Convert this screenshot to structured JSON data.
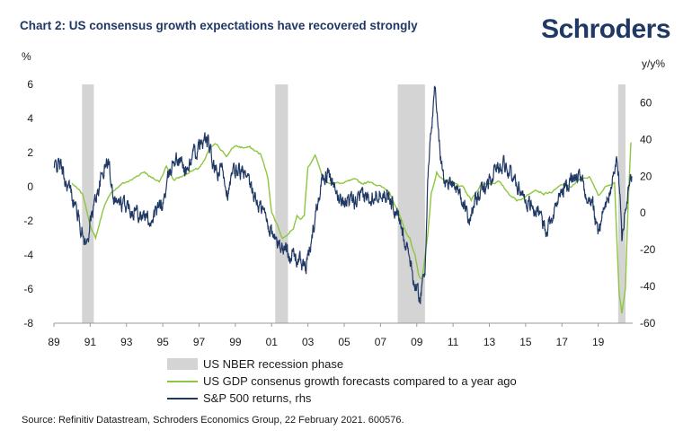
{
  "header": {
    "title": "Chart 2: US consensus growth expectations have recovered strongly",
    "logo": "Schroders"
  },
  "source": "Source: Refinitiv Datastream, Schroders Economics Group, 22 February 2021. 600576.",
  "colors": {
    "recession": "#d4d4d4",
    "gdp": "#8dc63f",
    "sp500": "#1f3864",
    "axis": "#9a9a9a",
    "text": "#1a1a1a"
  },
  "chart_data": {
    "type": "line",
    "title": "Chart 2: US consensus growth expectations have recovered strongly",
    "y_left_unit": "%",
    "y_right_unit": "y/y%",
    "ylim_left": [
      -8,
      6
    ],
    "ylim_right": [
      -60,
      70
    ],
    "xlim": [
      1989,
      2020.9
    ],
    "x_ticks": [
      "89",
      "91",
      "93",
      "95",
      "97",
      "99",
      "01",
      "03",
      "05",
      "07",
      "09",
      "11",
      "13",
      "15",
      "17",
      "19"
    ],
    "y_left_ticks": [
      -8,
      -6,
      -4,
      -2,
      0,
      2,
      4,
      6
    ],
    "y_right_ticks": [
      -60,
      -40,
      -20,
      0,
      20,
      40,
      60
    ],
    "grid": false,
    "legend_position": "bottom",
    "recessions": [
      [
        1990.55,
        1991.2
      ],
      [
        2001.2,
        2001.9
      ],
      [
        2007.95,
        2009.45
      ],
      [
        2020.1,
        2020.95
      ]
    ],
    "series": [
      {
        "name": "US NBER recession phase",
        "kind": "shaded"
      },
      {
        "name": "US GDP consenus growth forecasts compared to a year ago",
        "axis": "left",
        "color": "#8dc63f",
        "x": [
          1990.0,
          1990.6,
          1991.1,
          1991.3,
          1991.8,
          1992.3,
          1992.8,
          1993.3,
          1993.8,
          1994.0,
          1994.4,
          1994.8,
          1995.2,
          1995.6,
          1996.0,
          1996.5,
          1996.9,
          1997.3,
          1997.6,
          1998.0,
          1998.5,
          1999.0,
          1999.4,
          1999.8,
          2000.1,
          2000.4,
          2000.8,
          2001.0,
          2001.3,
          2001.6,
          2001.9,
          2002.2,
          2002.4,
          2002.6,
          2002.8,
          2003.0,
          2003.2,
          2003.4,
          2003.6,
          2003.8,
          2004.0,
          2004.5,
          2005.0,
          2005.5,
          2006.0,
          2006.5,
          2007.0,
          2007.5,
          2008.0,
          2008.3,
          2008.6,
          2008.9,
          2009.1,
          2009.3,
          2009.6,
          2009.8,
          2010.1,
          2010.5,
          2011.0,
          2011.5,
          2012.0,
          2012.5,
          2013.0,
          2013.5,
          2014.0,
          2014.5,
          2015.0,
          2015.5,
          2016.0,
          2016.5,
          2017.0,
          2017.5,
          2018.0,
          2018.5,
          2019.0,
          2019.5,
          2019.9,
          2020.15,
          2020.3,
          2020.5,
          2020.65,
          2020.8
        ],
        "y": [
          0.2,
          -0.5,
          -2.6,
          -3.0,
          -1.0,
          -0.2,
          0.2,
          0.4,
          0.8,
          0.9,
          0.5,
          0.3,
          1.2,
          0.4,
          0.6,
          0.9,
          1.0,
          1.5,
          2.3,
          2.5,
          1.8,
          2.4,
          2.3,
          2.3,
          2.1,
          1.9,
          0.5,
          -1.5,
          -2.2,
          -3.0,
          -2.8,
          -2.4,
          -1.7,
          -1.8,
          -1.6,
          1.2,
          1.5,
          1.8,
          1.3,
          0.5,
          0.3,
          0.2,
          0.2,
          0.4,
          0.2,
          0.3,
          0.0,
          -0.3,
          -1.5,
          -2.5,
          -3.0,
          -4.0,
          -5.2,
          -5.4,
          -2.8,
          -0.4,
          0.8,
          0.4,
          0.2,
          0.0,
          -0.8,
          0.1,
          0.2,
          0.3,
          -0.3,
          -0.8,
          -0.6,
          -0.1,
          -0.4,
          -0.3,
          0.1,
          0.0,
          0.4,
          0.6,
          -0.5,
          0.1,
          0.3,
          -6.2,
          -7.5,
          -6.0,
          -1.0,
          2.6
        ]
      },
      {
        "name": "S&P 500 returns, rhs",
        "axis": "right",
        "color": "#1f3864",
        "x": [
          1989.0,
          1989.3,
          1989.6,
          1990.0,
          1990.3,
          1990.6,
          1990.8,
          1991.0,
          1991.3,
          1991.5,
          1991.8,
          1992.0,
          1992.3,
          1992.6,
          1993.0,
          1993.5,
          1994.0,
          1994.3,
          1994.6,
          1995.0,
          1995.3,
          1995.6,
          1996.0,
          1996.3,
          1996.6,
          1997.0,
          1997.3,
          1997.5,
          1997.8,
          1998.0,
          1998.3,
          1998.6,
          1998.9,
          1999.2,
          1999.6,
          2000.0,
          2000.3,
          2000.6,
          2000.9,
          2001.2,
          2001.5,
          2001.8,
          2002.1,
          2002.4,
          2002.7,
          2002.9,
          2003.2,
          2003.5,
          2003.8,
          2004.1,
          2004.5,
          2005.0,
          2005.5,
          2006.0,
          2006.5,
          2007.0,
          2007.5,
          2007.9,
          2008.2,
          2008.5,
          2008.8,
          2009.0,
          2009.2,
          2009.45,
          2009.6,
          2009.8,
          2010.0,
          2010.3,
          2010.6,
          2011.0,
          2011.4,
          2011.8,
          2012.2,
          2012.6,
          2013.0,
          2013.4,
          2013.8,
          2014.2,
          2014.6,
          2015.0,
          2015.5,
          2015.9,
          2016.2,
          2016.6,
          2017.0,
          2017.5,
          2018.0,
          2018.3,
          2018.7,
          2018.95,
          2019.2,
          2019.6,
          2019.9,
          2020.05,
          2020.2,
          2020.3,
          2020.5,
          2020.7,
          2020.85
        ],
        "y": [
          24,
          28,
          18,
          10,
          0,
          -12,
          -18,
          -5,
          8,
          15,
          25,
          28,
          10,
          5,
          4,
          2,
          -2,
          -4,
          0,
          5,
          18,
          30,
          28,
          22,
          30,
          35,
          40,
          38,
          25,
          20,
          25,
          10,
          22,
          24,
          18,
          10,
          4,
          0,
          -8,
          -15,
          -18,
          -20,
          -22,
          -25,
          -28,
          -30,
          -15,
          5,
          20,
          22,
          10,
          7,
          5,
          8,
          10,
          12,
          8,
          0,
          -10,
          -18,
          -35,
          -42,
          -45,
          -30,
          15,
          45,
          70,
          30,
          15,
          18,
          10,
          -3,
          5,
          12,
          18,
          25,
          28,
          20,
          15,
          8,
          2,
          -5,
          -8,
          2,
          12,
          18,
          20,
          10,
          5,
          -10,
          -2,
          10,
          22,
          30,
          10,
          -15,
          5,
          15,
          20
        ]
      }
    ]
  }
}
